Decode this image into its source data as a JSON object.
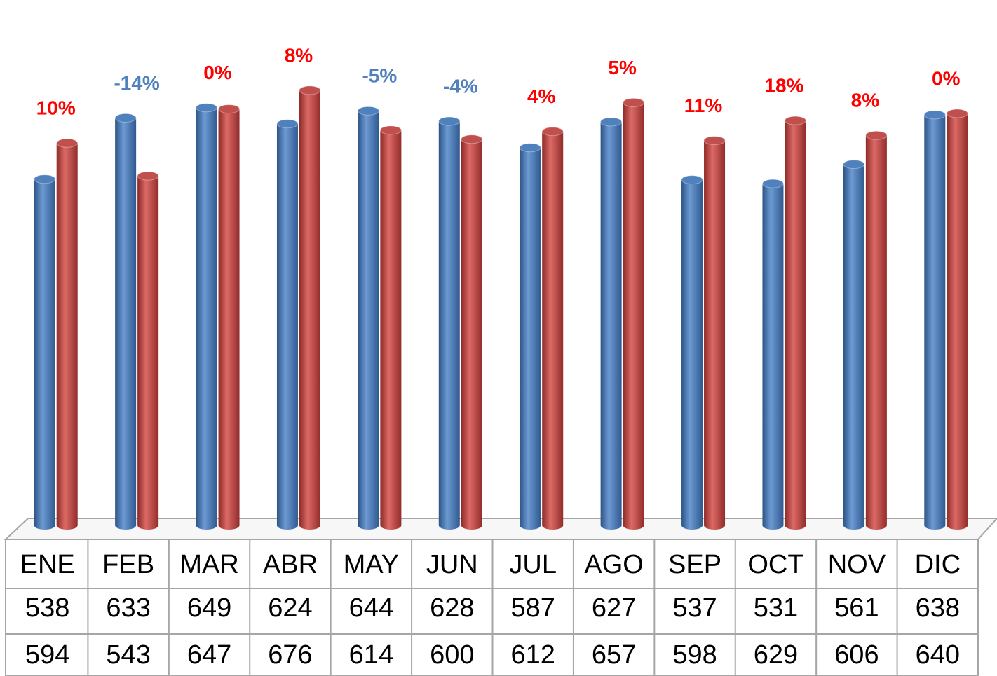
{
  "chart_data": {
    "type": "bar3d",
    "categories": [
      "ENE",
      "FEB",
      "MAR",
      "ABR",
      "MAY",
      "JUN",
      "JUL",
      "AGO",
      "SEP",
      "OCT",
      "NOV",
      "DIC"
    ],
    "series": [
      {
        "color": "#4f81bd",
        "values": [
          538,
          633,
          649,
          624,
          644,
          628,
          587,
          627,
          537,
          531,
          561,
          638
        ]
      },
      {
        "color": "#c0504d",
        "values": [
          594,
          543,
          647,
          676,
          614,
          600,
          612,
          657,
          598,
          629,
          606,
          640
        ]
      }
    ],
    "change": {
      "values": [
        10,
        -14,
        0,
        8,
        -5,
        -4,
        4,
        5,
        11,
        18,
        8,
        0
      ],
      "value_labels": [
        "10%",
        "-14%",
        "0%",
        "8%",
        "-5%",
        "-4%",
        "4%",
        "5%",
        "11%",
        "18%",
        "8%",
        "0%"
      ],
      "positive_color": "#ff0000",
      "negative_color": "#4f81bd"
    },
    "ylim": [
      0,
      800
    ],
    "data_table": true
  }
}
